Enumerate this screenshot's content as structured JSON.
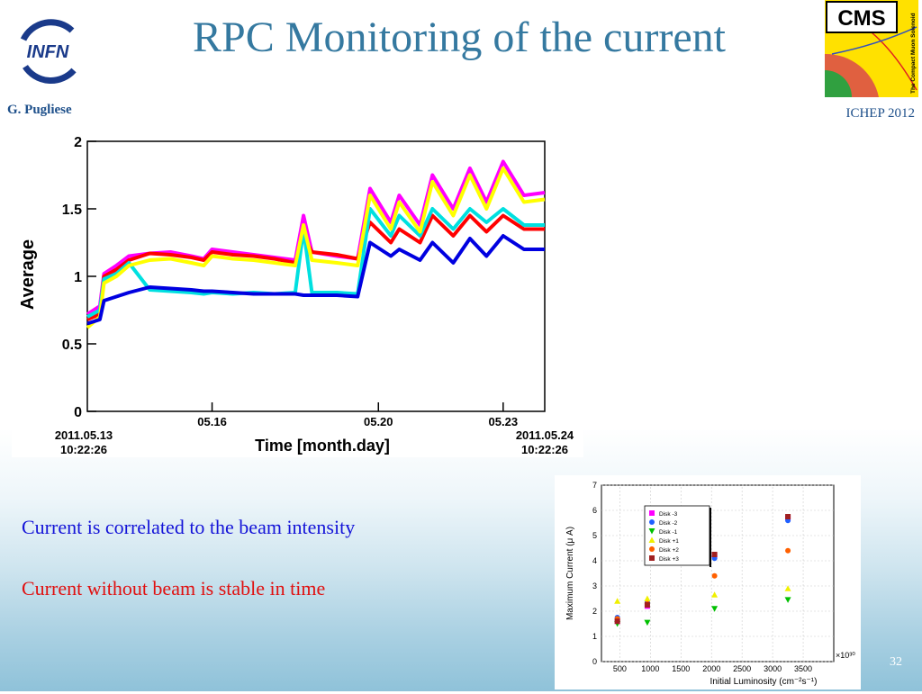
{
  "slide": {
    "title": "RPC Monitoring of the current",
    "author": "G. Pugliese",
    "conference": "ICHEP 2012",
    "page_number": "32",
    "bullet_1": "Current is correlated to the beam intensity",
    "bullet_2": "Current without beam is stable in time",
    "logo_left_text": "INFN",
    "logo_right_text": "CMS",
    "logo_right_subtext": "The Compact Muon Solenoid"
  },
  "chart_data": [
    {
      "type": "line",
      "title": "",
      "xlabel": "Time  [month.day]",
      "ylabel": "Average",
      "ylim": [
        0,
        2
      ],
      "yticks": [
        "0",
        "0.5",
        "1",
        "1.5",
        "2"
      ],
      "xlim": [
        0,
        11
      ],
      "xticks": [
        {
          "x": 3,
          "label": "05.16"
        },
        {
          "x": 7,
          "label": "05.20"
        },
        {
          "x": 10,
          "label": "05.23"
        }
      ],
      "x_start_label": [
        "2011.05.13",
        "10:22:26"
      ],
      "x_end_label": [
        "2011.05.24",
        "10:22:26"
      ],
      "grid": false,
      "series": [
        {
          "color": "#ff00ff",
          "values": [
            [
              0,
              0.72
            ],
            [
              0.3,
              0.78
            ],
            [
              0.4,
              1.02
            ],
            [
              0.7,
              1.08
            ],
            [
              1.0,
              1.15
            ],
            [
              1.5,
              1.17
            ],
            [
              2.0,
              1.18
            ],
            [
              2.5,
              1.15
            ],
            [
              2.8,
              1.13
            ],
            [
              3.0,
              1.2
            ],
            [
              3.5,
              1.18
            ],
            [
              4.0,
              1.16
            ],
            [
              4.5,
              1.14
            ],
            [
              5.0,
              1.12
            ],
            [
              5.2,
              1.45
            ],
            [
              5.4,
              1.18
            ],
            [
              6.0,
              1.15
            ],
            [
              6.5,
              1.13
            ],
            [
              6.8,
              1.65
            ],
            [
              7.3,
              1.4
            ],
            [
              7.5,
              1.6
            ],
            [
              8.0,
              1.38
            ],
            [
              8.3,
              1.75
            ],
            [
              8.8,
              1.5
            ],
            [
              9.2,
              1.8
            ],
            [
              9.6,
              1.55
            ],
            [
              10.0,
              1.85
            ],
            [
              10.5,
              1.6
            ],
            [
              11.0,
              1.62
            ]
          ]
        },
        {
          "color": "#ff0000",
          "values": [
            [
              0,
              0.68
            ],
            [
              0.3,
              0.72
            ],
            [
              0.4,
              1.0
            ],
            [
              0.7,
              1.05
            ],
            [
              1.0,
              1.12
            ],
            [
              1.5,
              1.17
            ],
            [
              2.0,
              1.16
            ],
            [
              2.5,
              1.14
            ],
            [
              2.8,
              1.12
            ],
            [
              3.0,
              1.18
            ],
            [
              3.5,
              1.16
            ],
            [
              4.0,
              1.15
            ],
            [
              4.5,
              1.13
            ],
            [
              5.0,
              1.1
            ],
            [
              5.2,
              1.3
            ],
            [
              5.4,
              1.18
            ],
            [
              6.0,
              1.16
            ],
            [
              6.5,
              1.13
            ],
            [
              6.8,
              1.4
            ],
            [
              7.3,
              1.25
            ],
            [
              7.5,
              1.35
            ],
            [
              8.0,
              1.25
            ],
            [
              8.3,
              1.45
            ],
            [
              8.8,
              1.3
            ],
            [
              9.2,
              1.45
            ],
            [
              9.6,
              1.33
            ],
            [
              10.0,
              1.45
            ],
            [
              10.5,
              1.35
            ],
            [
              11.0,
              1.35
            ]
          ]
        },
        {
          "color": "#00e0e0",
          "values": [
            [
              0,
              0.7
            ],
            [
              0.3,
              0.75
            ],
            [
              0.4,
              0.98
            ],
            [
              0.7,
              1.02
            ],
            [
              1.0,
              1.1
            ],
            [
              1.5,
              0.9
            ],
            [
              2.0,
              0.89
            ],
            [
              2.5,
              0.88
            ],
            [
              2.8,
              0.87
            ],
            [
              3.0,
              0.88
            ],
            [
              3.5,
              0.87
            ],
            [
              4.0,
              0.88
            ],
            [
              4.5,
              0.87
            ],
            [
              5.0,
              0.88
            ],
            [
              5.2,
              1.35
            ],
            [
              5.4,
              0.88
            ],
            [
              6.0,
              0.88
            ],
            [
              6.5,
              0.87
            ],
            [
              6.8,
              1.5
            ],
            [
              7.3,
              1.3
            ],
            [
              7.5,
              1.45
            ],
            [
              8.0,
              1.3
            ],
            [
              8.3,
              1.5
            ],
            [
              8.8,
              1.35
            ],
            [
              9.2,
              1.5
            ],
            [
              9.6,
              1.4
            ],
            [
              10.0,
              1.5
            ],
            [
              10.5,
              1.38
            ],
            [
              11.0,
              1.38
            ]
          ]
        },
        {
          "color": "#ffff00",
          "values": [
            [
              0,
              0.62
            ],
            [
              0.3,
              0.7
            ],
            [
              0.4,
              0.95
            ],
            [
              0.7,
              1.0
            ],
            [
              1.0,
              1.08
            ],
            [
              1.5,
              1.12
            ],
            [
              2.0,
              1.13
            ],
            [
              2.5,
              1.1
            ],
            [
              2.8,
              1.08
            ],
            [
              3.0,
              1.15
            ],
            [
              3.5,
              1.13
            ],
            [
              4.0,
              1.12
            ],
            [
              4.5,
              1.1
            ],
            [
              5.0,
              1.08
            ],
            [
              5.2,
              1.38
            ],
            [
              5.4,
              1.12
            ],
            [
              6.0,
              1.1
            ],
            [
              6.5,
              1.08
            ],
            [
              6.8,
              1.6
            ],
            [
              7.3,
              1.35
            ],
            [
              7.5,
              1.55
            ],
            [
              8.0,
              1.33
            ],
            [
              8.3,
              1.7
            ],
            [
              8.8,
              1.45
            ],
            [
              9.2,
              1.75
            ],
            [
              9.6,
              1.5
            ],
            [
              10.0,
              1.8
            ],
            [
              10.5,
              1.55
            ],
            [
              11.0,
              1.57
            ]
          ]
        },
        {
          "color": "#0000e0",
          "values": [
            [
              0,
              0.65
            ],
            [
              0.3,
              0.68
            ],
            [
              0.4,
              0.82
            ],
            [
              0.7,
              0.85
            ],
            [
              1.0,
              0.88
            ],
            [
              1.5,
              0.92
            ],
            [
              2.0,
              0.91
            ],
            [
              2.5,
              0.9
            ],
            [
              2.8,
              0.89
            ],
            [
              3.0,
              0.89
            ],
            [
              3.5,
              0.88
            ],
            [
              4.0,
              0.87
            ],
            [
              4.5,
              0.87
            ],
            [
              5.0,
              0.87
            ],
            [
              5.2,
              0.86
            ],
            [
              5.4,
              0.86
            ],
            [
              6.0,
              0.86
            ],
            [
              6.5,
              0.85
            ],
            [
              6.8,
              1.25
            ],
            [
              7.3,
              1.15
            ],
            [
              7.5,
              1.2
            ],
            [
              8.0,
              1.12
            ],
            [
              8.3,
              1.25
            ],
            [
              8.8,
              1.1
            ],
            [
              9.2,
              1.28
            ],
            [
              9.6,
              1.15
            ],
            [
              10.0,
              1.3
            ],
            [
              10.5,
              1.2
            ],
            [
              11.0,
              1.2
            ]
          ]
        }
      ]
    },
    {
      "type": "scatter",
      "title": "",
      "xlabel": "Initial Luminosity (cm⁻²s⁻¹)",
      "ylabel": "Maximum Current (μ A)",
      "x_multiplier": "×10³⁰",
      "xlim": [
        200,
        4000
      ],
      "ylim": [
        0,
        7
      ],
      "xticks": [
        "500",
        "1000",
        "1500",
        "2000",
        "2500",
        "3000",
        "3500"
      ],
      "yticks": [
        "0",
        "1",
        "2",
        "3",
        "4",
        "5",
        "6",
        "7"
      ],
      "legend_position": "top-left",
      "series": [
        {
          "name": "Disk -3",
          "color": "#ff00ff",
          "marker": "square",
          "x": [
            460,
            950,
            2050,
            3250
          ],
          "y": [
            1.6,
            2.2,
            4.2,
            5.7
          ]
        },
        {
          "name": "Disk -2",
          "color": "#2060ff",
          "marker": "circle",
          "x": [
            460,
            950,
            2050,
            3250
          ],
          "y": [
            1.75,
            2.35,
            4.1,
            5.6
          ]
        },
        {
          "name": "Disk -1",
          "color": "#00c000",
          "marker": "triangle-down",
          "x": [
            460,
            950,
            2050,
            3250
          ],
          "y": [
            1.5,
            1.55,
            2.1,
            2.45
          ]
        },
        {
          "name": "Disk +1",
          "color": "#f0f000",
          "marker": "triangle-up",
          "x": [
            460,
            950,
            2050,
            3250
          ],
          "y": [
            2.4,
            2.5,
            2.65,
            2.9
          ]
        },
        {
          "name": "Disk +2",
          "color": "#ff6000",
          "marker": "circle",
          "x": [
            460,
            950,
            2050,
            3250
          ],
          "y": [
            1.7,
            2.3,
            3.4,
            4.4
          ]
        },
        {
          "name": "Disk +3",
          "color": "#a02020",
          "marker": "square",
          "x": [
            460,
            950,
            2050,
            3250
          ],
          "y": [
            1.6,
            2.25,
            4.25,
            5.75
          ]
        }
      ]
    }
  ]
}
